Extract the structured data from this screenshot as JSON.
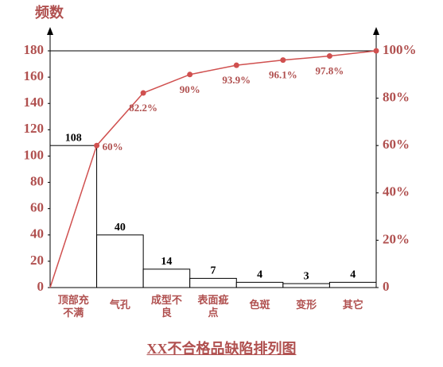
{
  "chart_data": {
    "type": "pareto",
    "title": "XX不合格品缺陷排列图",
    "y_label": "频数",
    "categories": [
      "顶部充不满",
      "气孔",
      "成型不良",
      "表面疵点",
      "色斑",
      "变形",
      "其它"
    ],
    "series": [
      {
        "name": "频数",
        "type": "bar",
        "color": "#000000",
        "values": [
          108,
          40,
          14,
          7,
          4,
          3,
          4
        ]
      },
      {
        "name": "累计百分比",
        "type": "line",
        "axis": "y2",
        "color": "#d0504f",
        "values": [
          60,
          82.2,
          90,
          93.9,
          96.1,
          97.8,
          100
        ],
        "value_labels": [
          "60%",
          "82.2%",
          "90%",
          "93.9%",
          "96.1%",
          "97.8%",
          null
        ]
      }
    ],
    "ylim": [
      0,
      180
    ],
    "yticks": [
      0,
      20,
      40,
      60,
      80,
      100,
      120,
      140,
      160,
      180
    ],
    "y2lim": [
      0,
      100
    ],
    "y2ticks": [
      {
        "value": 0,
        "label": "0"
      },
      {
        "value": 20,
        "label": "20%"
      },
      {
        "value": 40,
        "label": "40%"
      },
      {
        "value": 60,
        "label": "60%"
      },
      {
        "value": 80,
        "label": "80%"
      },
      {
        "value": 100,
        "label": "100%"
      }
    ]
  }
}
